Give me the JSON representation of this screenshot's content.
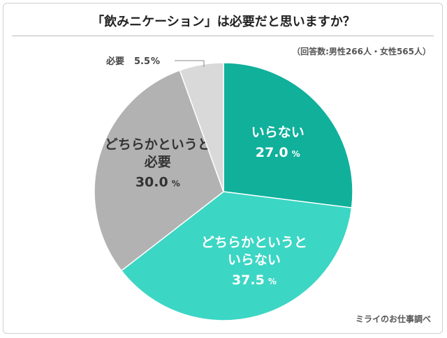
{
  "title": "「飲みニケーション」は必要だと思いますか？",
  "note": "（回答数:男性266人・女性565人）",
  "source": "ミライのお仕事調べ",
  "chart_data": {
    "type": "pie",
    "unit": "%",
    "slices": [
      {
        "label_lines": [
          "いらない"
        ],
        "value": 27.0,
        "value_text": "27.0",
        "color": "#10b09b",
        "text_color": "#ffffff"
      },
      {
        "label_lines": [
          "どちらかというと",
          "いらない"
        ],
        "value": 37.5,
        "value_text": "37.5",
        "color": "#3cd6c4",
        "text_color": "#ffffff"
      },
      {
        "label_lines": [
          "どちらかというと",
          "必要"
        ],
        "value": 30.0,
        "value_text": "30.0",
        "color": "#b2b2b2",
        "text_color": "#333333"
      },
      {
        "label_lines": [
          "必要"
        ],
        "value": 5.5,
        "value_text": "5.5",
        "color": "#d9d9d9",
        "text_color": "#444444",
        "outside": true
      }
    ]
  }
}
